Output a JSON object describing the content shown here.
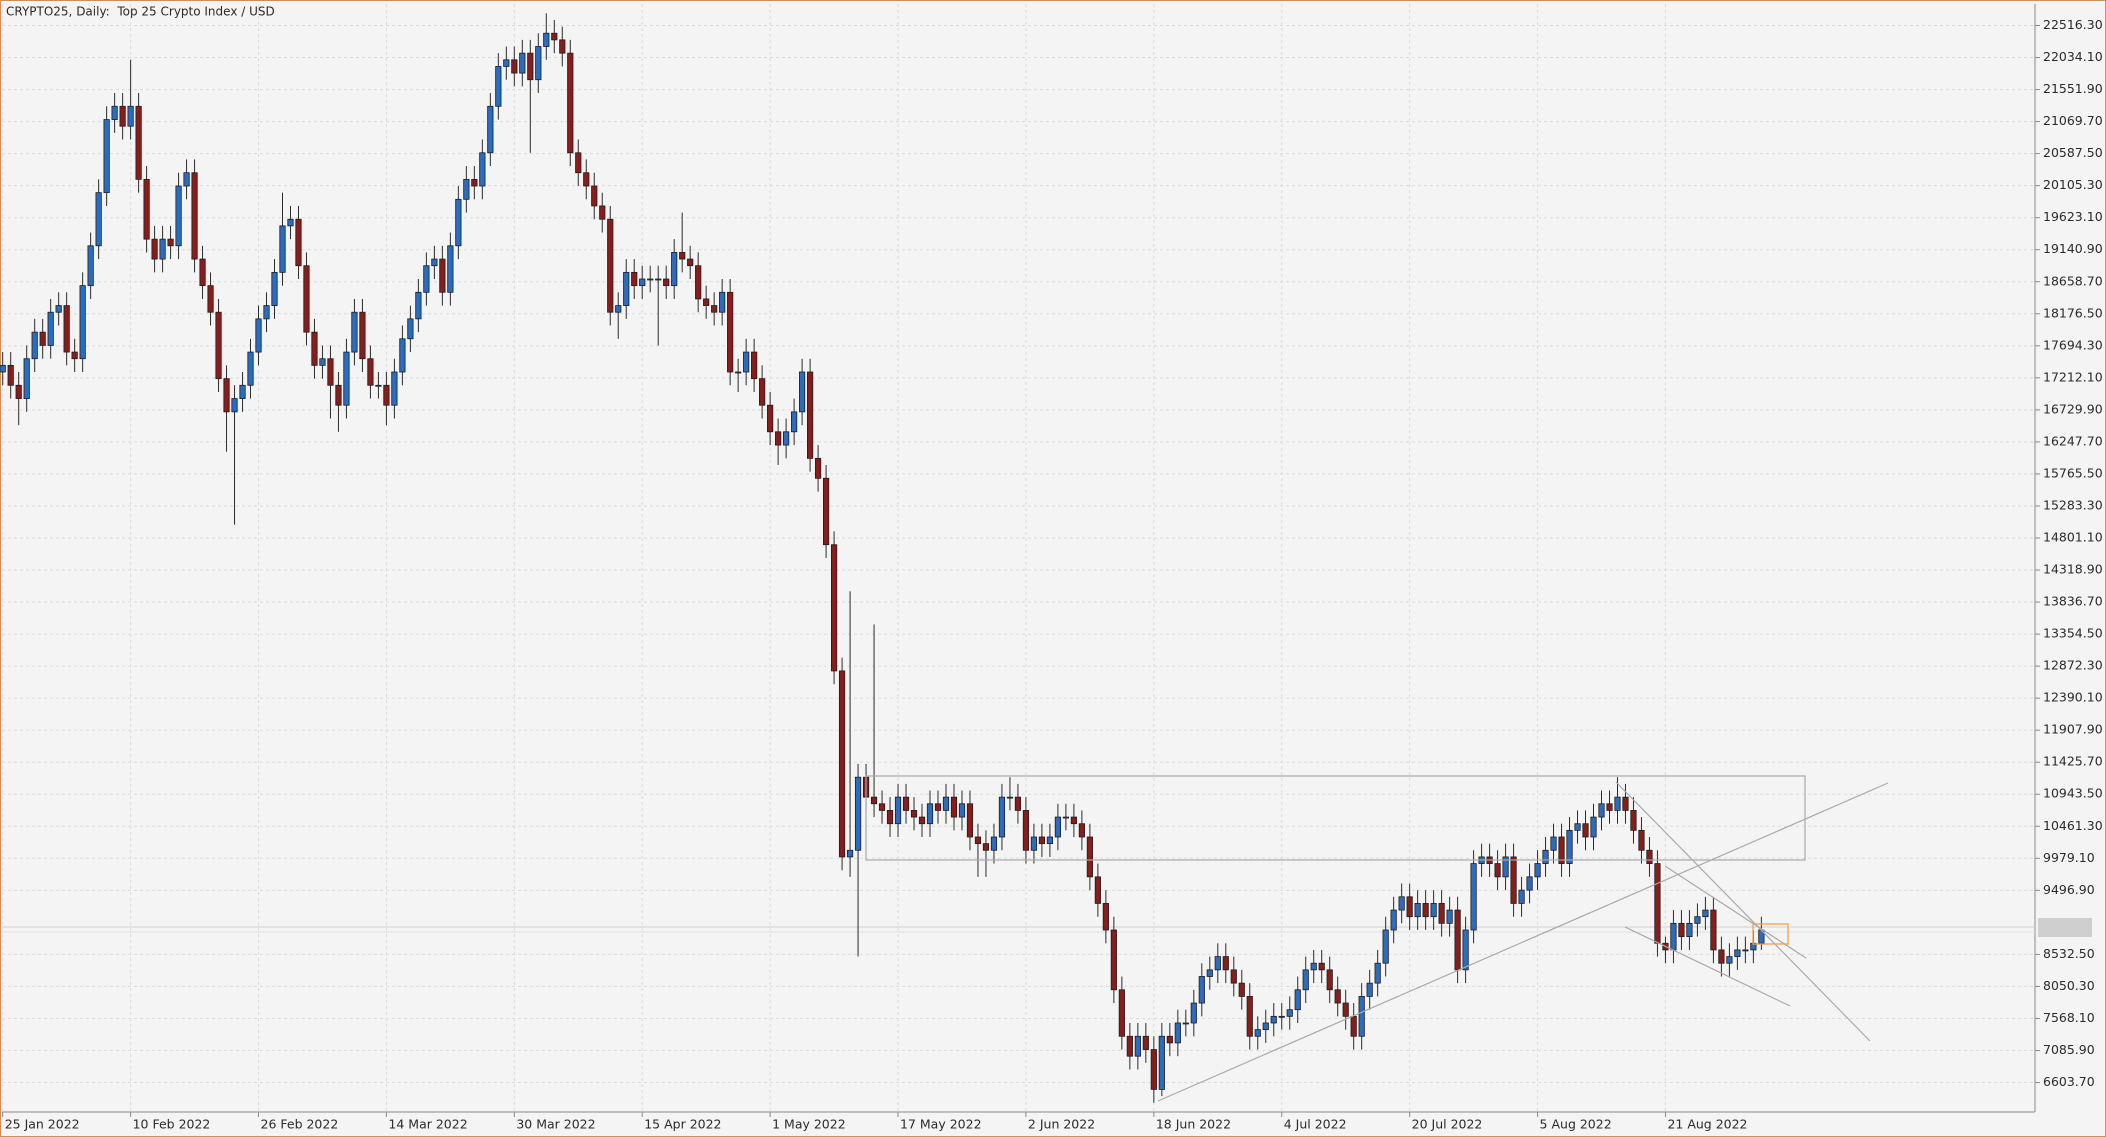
{
  "chart_data": {
    "type": "candlestick",
    "title": "CRYPTO25, Daily:  Top 25 Crypto Index / USD",
    "up_color": "#2b6cc0",
    "down_color": "#8a1c1c",
    "grid": true,
    "ylim": [
      6160,
      22840
    ],
    "yticks": [
      {
        "value": 22516.3,
        "label": "22516.30"
      },
      {
        "value": 22034.1,
        "label": "22034.10"
      },
      {
        "value": 21551.9,
        "label": "21551.90"
      },
      {
        "value": 21069.7,
        "label": "21069.70"
      },
      {
        "value": 20587.5,
        "label": "20587.50"
      },
      {
        "value": 20105.3,
        "label": "20105.30"
      },
      {
        "value": 19623.1,
        "label": "19623.10"
      },
      {
        "value": 19140.9,
        "label": "19140.90"
      },
      {
        "value": 18658.7,
        "label": "18658.70"
      },
      {
        "value": 18176.5,
        "label": "18176.50"
      },
      {
        "value": 17694.3,
        "label": "17694.30"
      },
      {
        "value": 17212.1,
        "label": "17212.10"
      },
      {
        "value": 16729.9,
        "label": "16729.90"
      },
      {
        "value": 16247.7,
        "label": "16247.70"
      },
      {
        "value": 15765.5,
        "label": "15765.50"
      },
      {
        "value": 15283.3,
        "label": "15283.30"
      },
      {
        "value": 14801.1,
        "label": "14801.10"
      },
      {
        "value": 14318.9,
        "label": "14318.90"
      },
      {
        "value": 13836.7,
        "label": "13836.70"
      },
      {
        "value": 13354.5,
        "label": "13354.50"
      },
      {
        "value": 12872.3,
        "label": "12872.30"
      },
      {
        "value": 12390.1,
        "label": "12390.10"
      },
      {
        "value": 11907.9,
        "label": "11907.90"
      },
      {
        "value": 11425.7,
        "label": "11425.70"
      },
      {
        "value": 10943.5,
        "label": "10943.50"
      },
      {
        "value": 10461.3,
        "label": "10461.30"
      },
      {
        "value": 9979.1,
        "label": "9979.10"
      },
      {
        "value": 9496.9,
        "label": "9496.90"
      },
      {
        "value": 8532.5,
        "label": "8532.50"
      },
      {
        "value": 8050.3,
        "label": "8050.30"
      },
      {
        "value": 7568.1,
        "label": "7568.10"
      },
      {
        "value": 7085.9,
        "label": "7085.90"
      },
      {
        "value": 6603.7,
        "label": "6603.70"
      }
    ],
    "categories": [
      "25 Jan 2022",
      null,
      null,
      null,
      null,
      null,
      null,
      null,
      null,
      null,
      null,
      null,
      null,
      null,
      null,
      null,
      "10 Feb 2022",
      null,
      null,
      null,
      null,
      null,
      null,
      null,
      null,
      null,
      null,
      null,
      null,
      null,
      null,
      null,
      "26 Feb 2022",
      null,
      null,
      null,
      null,
      null,
      null,
      null,
      null,
      null,
      null,
      null,
      null,
      null,
      null,
      null,
      "14 Mar 2022",
      null,
      null,
      null,
      null,
      null,
      null,
      null,
      null,
      null,
      null,
      null,
      null,
      null,
      null,
      null,
      "30 Mar 2022",
      null,
      null,
      null,
      null,
      null,
      null,
      null,
      null,
      null,
      null,
      null,
      null,
      null,
      null,
      null,
      "15 Apr 2022",
      null,
      null,
      null,
      null,
      null,
      null,
      null,
      null,
      null,
      null,
      null,
      null,
      null,
      null,
      null,
      "1 May 2022",
      null,
      null,
      null,
      null,
      null,
      null,
      null,
      null,
      null,
      null,
      null,
      null,
      null,
      null,
      null,
      "17 May 2022",
      null,
      null,
      null,
      null,
      null,
      null,
      null,
      null,
      null,
      null,
      null,
      null,
      null,
      null,
      null,
      "2 Jun 2022",
      null,
      null,
      null,
      null,
      null,
      null,
      null,
      null,
      null,
      null,
      null,
      null,
      null,
      null,
      null,
      "18 Jun 2022",
      null,
      null,
      null,
      null,
      null,
      null,
      null,
      null,
      null,
      null,
      null,
      null,
      null,
      null,
      null,
      "4 Jul 2022",
      null,
      null,
      null,
      null,
      null,
      null,
      null,
      null,
      null,
      null,
      null,
      null,
      null,
      null,
      null,
      "20 Jul 2022",
      null,
      null,
      null,
      null,
      null,
      null,
      null,
      null,
      null,
      null,
      null,
      null,
      null,
      null,
      null,
      "5 Aug 2022",
      null,
      null,
      null,
      null,
      null,
      null,
      null,
      null,
      null,
      null,
      null,
      null,
      null,
      null,
      null,
      "21 Aug 2022",
      null,
      null,
      null,
      null,
      null,
      null,
      null,
      null,
      null,
      null,
      null,
      null
    ],
    "open": [
      17300,
      17400,
      17100,
      16900,
      17500,
      17900,
      17700,
      18200,
      18300,
      17600,
      17500,
      18600,
      19200,
      20000,
      21100,
      21300,
      21000,
      21300,
      20200,
      19300,
      19000,
      19300,
      19200,
      20100,
      20300,
      19000,
      18600,
      18200,
      17200,
      16700,
      16900,
      17100,
      17600,
      18100,
      18300,
      18800,
      19500,
      19600,
      18900,
      17900,
      17400,
      17500,
      17100,
      16800,
      17600,
      18200,
      17500,
      17100,
      17100,
      16800,
      17300,
      17800,
      18100,
      18500,
      18900,
      19000,
      18500,
      19200,
      19900,
      20200,
      20100,
      20600,
      21300,
      21900,
      22000,
      21800,
      22100,
      21700,
      22200,
      22400,
      22300,
      22100,
      20600,
      20300,
      20100,
      19800,
      19600,
      18200,
      18300,
      18800,
      18600,
      18700,
      18700,
      18700,
      18600,
      19100,
      19000,
      18900,
      18400,
      18300,
      18200,
      18500,
      17300,
      17300,
      17600,
      17200,
      16800,
      16400,
      16200,
      16400,
      16700,
      17300,
      16000,
      15700,
      14700,
      12800,
      10000,
      10100,
      11200,
      10900,
      10800,
      10700,
      10500,
      10900,
      10700,
      10600,
      10500,
      10800,
      10700,
      10900,
      10600,
      10800,
      10300,
      10200,
      10100,
      10300,
      10900,
      10900,
      10700,
      10100,
      10300,
      10200,
      10300,
      10600,
      10600,
      10500,
      10300,
      9700,
      9300,
      8900,
      8000,
      7300,
      7000,
      7300,
      7100,
      6500,
      7300,
      7200,
      7500,
      7500,
      7800,
      8200,
      8300,
      8500,
      8300,
      8100,
      7900,
      7300,
      7400,
      7500,
      7600,
      7600,
      7700,
      8000,
      8300,
      8400,
      8300,
      8000,
      7800,
      7600,
      7300,
      7900,
      8100,
      8400,
      8900,
      9200,
      9400,
      9100,
      9300,
      9100,
      9300,
      9000,
      9200,
      8300,
      8900,
      9900,
      10000,
      9900,
      9700,
      10000,
      9300,
      9500,
      9700,
      9900,
      10100,
      10300,
      9900,
      10400,
      10500,
      10300,
      10600,
      10800,
      10700,
      10900,
      10700,
      10400,
      10100,
      9900,
      8700,
      8600,
      9000,
      8800,
      9000,
      9100,
      9200,
      8600,
      8400,
      8500,
      8600,
      8600,
      8700
    ],
    "high": [
      17600,
      17600,
      17300,
      17700,
      18100,
      18100,
      18400,
      18500,
      18500,
      17800,
      18800,
      19400,
      20200,
      21300,
      21500,
      21500,
      22000,
      21500,
      20400,
      19500,
      19500,
      19500,
      20300,
      20500,
      20500,
      19200,
      18800,
      18400,
      17400,
      17100,
      17300,
      17800,
      18300,
      18500,
      19000,
      20000,
      19800,
      19800,
      19100,
      18100,
      17700,
      17700,
      17300,
      17800,
      18400,
      18400,
      17700,
      17300,
      17300,
      17500,
      18000,
      18300,
      18700,
      19100,
      19200,
      19200,
      19400,
      20100,
      20400,
      20400,
      20800,
      21500,
      22100,
      22200,
      22200,
      22300,
      22300,
      22400,
      22700,
      22600,
      22500,
      22300,
      20800,
      20500,
      20300,
      20000,
      19800,
      18500,
      19000,
      19000,
      18900,
      18900,
      18900,
      18900,
      19300,
      19700,
      19200,
      19100,
      18600,
      18500,
      18700,
      18700,
      17500,
      17800,
      17800,
      17400,
      17000,
      16600,
      16600,
      16900,
      17500,
      17500,
      16200,
      15900,
      14900,
      13000,
      14000,
      11400,
      11400,
      13500,
      11000,
      10900,
      11100,
      11100,
      10900,
      10800,
      11000,
      11000,
      11100,
      11100,
      11000,
      11000,
      10500,
      10400,
      10500,
      11100,
      11200,
      11100,
      10900,
      10500,
      10500,
      10500,
      10800,
      10800,
      10800,
      10700,
      10500,
      9900,
      9500,
      9100,
      8200,
      7500,
      7500,
      7500,
      7300,
      7500,
      7500,
      7700,
      7700,
      8000,
      8400,
      8500,
      8700,
      8700,
      8500,
      8300,
      8100,
      7600,
      7700,
      7800,
      7800,
      7900,
      8200,
      8500,
      8600,
      8600,
      8500,
      8200,
      8000,
      7800,
      8100,
      8300,
      8600,
      9100,
      9400,
      9600,
      9600,
      9500,
      9500,
      9500,
      9500,
      9400,
      9400,
      9100,
      10100,
      10200,
      10200,
      10100,
      10200,
      10200,
      9700,
      9900,
      10100,
      10300,
      10500,
      10500,
      10600,
      10700,
      10700,
      10800,
      11000,
      11000,
      11200,
      11100,
      10900,
      10600,
      10300,
      10100,
      8800,
      9200,
      9200,
      9200,
      9300,
      9400,
      9400,
      8800,
      8700,
      8800,
      8800,
      8900,
      9100
    ],
    "low": [
      17100,
      16900,
      16500,
      16700,
      17300,
      17500,
      17500,
      18000,
      17400,
      17300,
      17300,
      18400,
      19000,
      19800,
      20900,
      20800,
      20800,
      20000,
      19100,
      18800,
      18800,
      19000,
      19000,
      19900,
      18800,
      18400,
      18000,
      17000,
      16100,
      15000,
      16700,
      16900,
      17400,
      17900,
      18100,
      18600,
      19300,
      18700,
      17700,
      17200,
      17200,
      16600,
      16400,
      16600,
      17400,
      17300,
      16900,
      16900,
      16500,
      16600,
      17100,
      17600,
      17900,
      18300,
      18700,
      18300,
      18300,
      19000,
      19700,
      19900,
      19900,
      20400,
      21100,
      21700,
      21600,
      21600,
      20600,
      21500,
      22000,
      22100,
      21900,
      20400,
      20100,
      19900,
      19600,
      19400,
      18000,
      17800,
      18100,
      18400,
      18400,
      18500,
      17700,
      18400,
      18400,
      18800,
      18700,
      18200,
      18100,
      18000,
      18000,
      17100,
      17000,
      17100,
      17000,
      16600,
      16200,
      15900,
      16000,
      16200,
      16500,
      15800,
      15500,
      14500,
      12600,
      9800,
      9700,
      8500,
      10700,
      10600,
      10500,
      10300,
      10300,
      10500,
      10400,
      10300,
      10300,
      10500,
      10500,
      10400,
      10400,
      10100,
      9700,
      9700,
      9900,
      10100,
      10700,
      10500,
      9900,
      9900,
      10000,
      10000,
      10100,
      10400,
      10300,
      10100,
      9500,
      9100,
      8700,
      7800,
      7100,
      6800,
      6800,
      6900,
      6300,
      6400,
      7000,
      7000,
      7300,
      7300,
      7600,
      8000,
      8100,
      8100,
      7900,
      7700,
      7100,
      7100,
      7200,
      7300,
      7400,
      7400,
      7500,
      7800,
      8100,
      8100,
      7800,
      7600,
      7400,
      7100,
      7100,
      7700,
      7900,
      8200,
      8700,
      9000,
      8900,
      8900,
      8900,
      8900,
      8800,
      8800,
      8100,
      8100,
      8700,
      9700,
      9700,
      9500,
      9500,
      9100,
      9100,
      9300,
      9500,
      9700,
      9900,
      9700,
      9700,
      10200,
      10100,
      10100,
      10400,
      10500,
      10500,
      10500,
      10200,
      9900,
      9700,
      8500,
      8400,
      8400,
      8600,
      8600,
      8800,
      8900,
      8400,
      8200,
      8200,
      8300,
      8400,
      8400,
      8600
    ],
    "close": [
      17400,
      17100,
      16900,
      17500,
      17900,
      17700,
      18200,
      18300,
      17600,
      17500,
      18600,
      19200,
      20000,
      21100,
      21300,
      21000,
      21300,
      20200,
      19300,
      19000,
      19300,
      19200,
      20100,
      20300,
      19000,
      18600,
      18200,
      17200,
      16700,
      16900,
      17100,
      17600,
      18100,
      18300,
      18800,
      19500,
      19600,
      18900,
      17900,
      17400,
      17500,
      17100,
      16800,
      17600,
      18200,
      17500,
      17100,
      17100,
      16800,
      17300,
      17800,
      18100,
      18500,
      18900,
      19000,
      18500,
      19200,
      19900,
      20200,
      20100,
      20600,
      21300,
      21900,
      22000,
      21800,
      22100,
      21700,
      22200,
      22400,
      22300,
      22100,
      20600,
      20300,
      20100,
      19800,
      19600,
      18200,
      18300,
      18800,
      18600,
      18700,
      18700,
      18700,
      18600,
      19100,
      19000,
      18900,
      18400,
      18300,
      18200,
      18500,
      17300,
      17300,
      17600,
      17200,
      16800,
      16400,
      16200,
      16400,
      16700,
      17300,
      16000,
      15700,
      14700,
      12800,
      10000,
      10100,
      11200,
      10900,
      10800,
      10700,
      10500,
      10900,
      10700,
      10600,
      10500,
      10800,
      10700,
      10900,
      10600,
      10800,
      10300,
      10200,
      10100,
      10300,
      10900,
      10900,
      10700,
      10100,
      10300,
      10200,
      10300,
      10600,
      10600,
      10500,
      10300,
      9700,
      9300,
      8900,
      8000,
      7300,
      7000,
      7300,
      7100,
      6500,
      7300,
      7200,
      7500,
      7500,
      7800,
      8200,
      8300,
      8500,
      8300,
      8100,
      7900,
      7300,
      7400,
      7500,
      7600,
      7600,
      7700,
      8000,
      8300,
      8400,
      8300,
      8000,
      7800,
      7600,
      7300,
      7900,
      8100,
      8400,
      8900,
      9200,
      9400,
      9100,
      9300,
      9100,
      9300,
      9000,
      9200,
      8300,
      8900,
      9900,
      10000,
      9900,
      9700,
      10000,
      9300,
      9500,
      9700,
      9900,
      10100,
      10300,
      9900,
      10400,
      10500,
      10300,
      10600,
      10800,
      10700,
      10900,
      10700,
      10400,
      10100,
      9900,
      8700,
      8600,
      9000,
      8800,
      9000,
      9100,
      9200,
      8600,
      8400,
      8500,
      8600,
      8600,
      8700,
      8900
    ]
  }
}
